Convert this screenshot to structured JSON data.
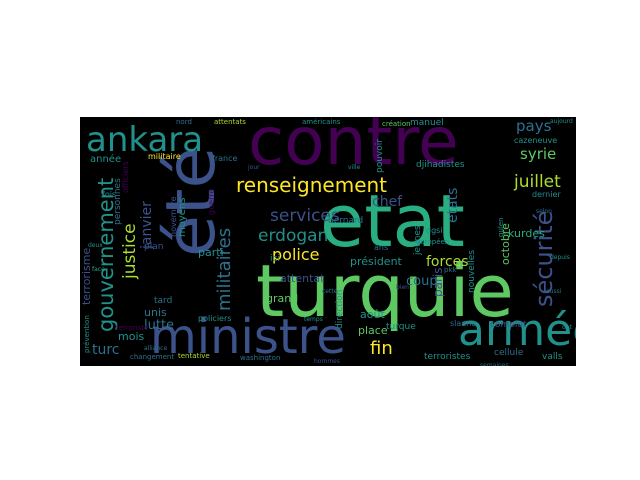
{
  "background": "#000000",
  "page_background": "#ffffff",
  "palette": {
    "purple": "#440154",
    "indigo": "#3b528b",
    "blue": "#2c728e",
    "teal": "#21918c",
    "green": "#28ae80",
    "lime": "#5ec962",
    "light-lime": "#addc30",
    "yellow": "#fde725"
  },
  "words": {
    "contre": "contre",
    "etat": "etat",
    "turquie": "turquie",
    "ete": "été",
    "ministre": "ministre",
    "armee": "armée",
    "ankara": "ankara",
    "renseignement": "renseignement",
    "gouvernement": "gouvernement",
    "securite": "sécurité",
    "services": "services",
    "erdogan": "erdogan",
    "militaires": "militaires",
    "justice": "justice",
    "police": "police",
    "forces": "forces",
    "juillet": "juillet",
    "syrie": "syrie",
    "pays": "pays",
    "fin": "fin",
    "janvier": "janvier",
    "lutte": "lutte",
    "terrorisme": "terrorisme",
    "turc": "turc",
    "coup": "coup",
    "chef": "chef",
    "etats": "etats",
    "president": "président",
    "paris": "paris",
    "octobre": "octobre",
    "kurdes": "kurdes",
    "attentat": "attentat",
    "place": "place",
    "aout": "août",
    "grand": "grand",
    "parti": "parti",
    "unis": "unis",
    "mois": "mois",
    "annee": "année",
    "militaire": "militaire",
    "france": "france",
    "ici": "ici",
    "moyens": "moyens",
    "plan": "plan",
    "tard": "tard",
    "personnes": "personnes",
    "officiers": "officiers",
    "fois": "fois",
    "novembre": "novembre",
    "guerre": "guerre",
    "jeunes": "jeunes",
    "direction": "direction",
    "turque": "turque",
    "bernard": "bernard",
    "manuel": "manuel",
    "pouvoir": "pouvoir",
    "djihadistes": "djihadistes",
    "nouvelles": "nouvelles",
    "terroristes": "terroristes",
    "cellule": "cellule",
    "valls": "valls",
    "complot": "complot",
    "slaano": "slaano",
    "dernier": "dernier",
    "cazeneuve": "cazeneuve",
    "ans": "ans",
    "dgsi": "dgsi",
    "europeen": "européen",
    "policiers": "policiers",
    "tentative": "tentative",
    "washington": "washington",
    "terroriste": "terroriste",
    "attentats": "attentats",
    "creation": "création",
    "nord": "nord",
    "americains": "américains",
    "aujourd": "aujourd",
    "pkk": "pkk",
    "gulen": "gulen",
    "prevention": "prévention",
    "changement": "changement",
    "alliance": "alliance",
    "face": "face",
    "hommes": "hommes",
    "semaines": "semaines",
    "ville": "ville",
    "jour": "jour",
    "selon": "selon",
    "depuis": "depuis",
    "aussi": "aussi",
    "temps": "temps",
    "bien": "bien",
    "deux": "deux",
    "ont": "ont",
    "cette": "cette"
  }
}
